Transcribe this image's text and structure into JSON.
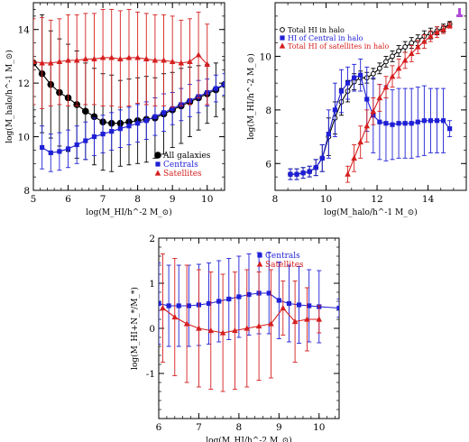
{
  "figure": {
    "panels": [
      "panel-top-left",
      "panel-top-right",
      "panel-bottom"
    ]
  },
  "chart_data": [
    {
      "id": "panel-top-left",
      "type": "line",
      "xlabel": "log(M_HI/h^-2 M_⊙)",
      "ylabel": "log(M_halo/h^-1 M_⊙)",
      "xlim": [
        5,
        10.5
      ],
      "ylim": [
        8,
        15
      ],
      "xticks": [
        5,
        6,
        7,
        8,
        9,
        10
      ],
      "yticks": [
        8,
        10,
        12,
        14
      ],
      "legend": {
        "placement": "bottom-right",
        "entries": [
          {
            "label": "All galaxies",
            "color": "#000000",
            "marker": "circle"
          },
          {
            "label": "Centrals",
            "color": "#1f1fd6",
            "marker": "square"
          },
          {
            "label": "Satellites",
            "color": "#d61f1f",
            "marker": "triangle"
          }
        ]
      },
      "series": [
        {
          "name": "All galaxies",
          "color": "#000000",
          "marker": "circle",
          "x": [
            5.0,
            5.25,
            5.5,
            5.75,
            6.0,
            6.25,
            6.5,
            6.75,
            7.0,
            7.25,
            7.5,
            7.75,
            8.0,
            8.25,
            8.5,
            8.75,
            9.0,
            9.25,
            9.5,
            9.75,
            10.0,
            10.25,
            10.5
          ],
          "y": [
            12.75,
            12.35,
            11.95,
            11.65,
            11.45,
            11.2,
            10.95,
            10.75,
            10.55,
            10.5,
            10.5,
            10.55,
            10.6,
            10.65,
            10.7,
            10.85,
            11.0,
            11.15,
            11.3,
            11.45,
            11.6,
            11.75,
            11.95
          ],
          "err": [
            2.0,
            2.2,
            2.0,
            2.0,
            2.0,
            2.0,
            1.8,
            1.8,
            1.8,
            1.8,
            1.6,
            1.6,
            1.6,
            1.6,
            1.5,
            1.5,
            1.4,
            1.4,
            1.3,
            1.2,
            1.1,
            1.0,
            0.9
          ]
        },
        {
          "name": "Centrals",
          "color": "#1f1fd6",
          "marker": "square",
          "x": [
            5.25,
            5.5,
            5.75,
            6.0,
            6.25,
            6.5,
            6.75,
            7.0,
            7.25,
            7.5,
            7.75,
            8.0,
            8.25,
            8.5,
            8.75,
            9.0,
            9.25,
            9.5,
            9.75,
            10.0,
            10.25,
            10.5
          ],
          "y": [
            9.6,
            9.4,
            9.45,
            9.55,
            9.7,
            9.85,
            10.0,
            10.1,
            10.2,
            10.3,
            10.4,
            10.5,
            10.6,
            10.75,
            10.9,
            11.05,
            11.2,
            11.35,
            11.5,
            11.65,
            11.8,
            11.95
          ],
          "err": [
            0.8,
            0.7,
            0.7,
            0.7,
            0.7,
            0.7,
            0.7,
            0.7,
            0.7,
            0.7,
            0.7,
            0.7,
            0.7,
            0.7,
            0.7,
            0.6,
            0.6,
            0.6,
            0.6,
            0.5,
            0.5,
            0.4
          ]
        },
        {
          "name": "Satellites",
          "color": "#d61f1f",
          "marker": "triangle",
          "x": [
            5.0,
            5.25,
            5.5,
            5.75,
            6.0,
            6.25,
            6.5,
            6.75,
            7.0,
            7.25,
            7.5,
            7.75,
            8.0,
            8.25,
            8.5,
            8.75,
            9.0,
            9.25,
            9.5,
            9.75,
            10.0
          ],
          "y": [
            12.8,
            12.75,
            12.75,
            12.8,
            12.85,
            12.85,
            12.9,
            12.9,
            12.95,
            12.95,
            12.9,
            12.95,
            12.95,
            12.9,
            12.85,
            12.85,
            12.8,
            12.75,
            12.8,
            13.05,
            12.7
          ],
          "err": [
            1.6,
            1.7,
            1.6,
            1.6,
            1.7,
            1.7,
            1.7,
            1.7,
            1.8,
            1.8,
            1.8,
            1.8,
            1.7,
            1.7,
            1.7,
            1.7,
            1.7,
            1.6,
            1.6,
            1.6,
            1.5
          ]
        }
      ]
    },
    {
      "id": "panel-top-right",
      "type": "line",
      "xlabel": "log(M_halo/h^-1 M_⊙)",
      "ylabel": "log(M_HI/h^-2 M_⊙)",
      "xlim": [
        8,
        15.5
      ],
      "ylim": [
        5,
        12
      ],
      "xticks": [
        8,
        10,
        12,
        14
      ],
      "yticks": [
        6,
        8,
        10
      ],
      "legend": {
        "placement": "top-left",
        "entries": [
          {
            "label": "Total HI in halo",
            "color": "#000000",
            "marker": "open-circle"
          },
          {
            "label": "HI of Central in halo",
            "color": "#1f1fd6",
            "marker": "square"
          },
          {
            "label": "Total HI of satellites in halo",
            "color": "#d61f1f",
            "marker": "triangle"
          }
        ]
      },
      "series": [
        {
          "name": "Total HI in halo",
          "color": "#000000",
          "marker": "open-circle",
          "x": [
            8.6,
            8.85,
            9.1,
            9.35,
            9.6,
            9.85,
            10.1,
            10.35,
            10.6,
            10.85,
            11.1,
            11.35,
            11.6,
            11.85,
            12.1,
            12.35,
            12.6,
            12.85,
            13.1,
            13.35,
            13.6,
            13.85,
            14.1,
            14.35,
            14.6,
            14.85
          ],
          "y": [
            5.6,
            5.6,
            5.65,
            5.7,
            5.85,
            6.2,
            7.0,
            7.7,
            8.3,
            8.7,
            9.05,
            9.2,
            9.2,
            9.35,
            9.55,
            9.8,
            10.0,
            10.2,
            10.35,
            10.5,
            10.6,
            10.75,
            10.85,
            10.95,
            11.05,
            11.2
          ],
          "err": [
            0.2,
            0.2,
            0.2,
            0.2,
            0.3,
            0.5,
            0.7,
            0.6,
            0.5,
            0.4,
            0.3,
            0.25,
            0.2,
            0.2,
            0.2,
            0.2,
            0.2,
            0.2,
            0.2,
            0.2,
            0.2,
            0.2,
            0.2,
            0.15,
            0.15,
            0.1
          ]
        },
        {
          "name": "HI of Central in halo",
          "color": "#1f1fd6",
          "marker": "square",
          "x": [
            8.6,
            8.85,
            9.1,
            9.35,
            9.6,
            9.85,
            10.1,
            10.35,
            10.6,
            10.85,
            11.1,
            11.35,
            11.6,
            11.85,
            12.1,
            12.35,
            12.6,
            12.85,
            13.1,
            13.35,
            13.6,
            13.85,
            14.1,
            14.35,
            14.6,
            14.85
          ],
          "y": [
            5.6,
            5.6,
            5.65,
            5.7,
            5.85,
            6.2,
            7.1,
            8.0,
            8.7,
            9.0,
            9.2,
            9.3,
            8.4,
            7.8,
            7.55,
            7.5,
            7.45,
            7.5,
            7.5,
            7.5,
            7.55,
            7.6,
            7.6,
            7.6,
            7.6,
            7.3
          ],
          "err": [
            0.2,
            0.2,
            0.2,
            0.2,
            0.3,
            0.5,
            0.9,
            1.0,
            0.8,
            0.6,
            0.5,
            0.6,
            1.2,
            1.4,
            1.4,
            1.4,
            1.3,
            1.3,
            1.3,
            1.3,
            1.3,
            1.3,
            1.2,
            1.2,
            1.2,
            0.3
          ]
        },
        {
          "name": "Total HI of satellites in halo",
          "color": "#d61f1f",
          "marker": "triangle",
          "x": [
            10.85,
            11.1,
            11.35,
            11.6,
            11.85,
            12.1,
            12.35,
            12.6,
            12.85,
            13.1,
            13.35,
            13.6,
            13.85,
            14.1,
            14.35,
            14.6,
            14.85
          ],
          "y": [
            5.6,
            6.2,
            6.8,
            7.4,
            7.95,
            8.45,
            8.85,
            9.25,
            9.55,
            9.85,
            10.1,
            10.35,
            10.55,
            10.75,
            10.9,
            11.0,
            11.15
          ],
          "err": [
            0.3,
            0.5,
            0.6,
            0.6,
            0.5,
            0.5,
            0.4,
            0.4,
            0.35,
            0.3,
            0.3,
            0.25,
            0.25,
            0.2,
            0.2,
            0.15,
            0.1
          ]
        }
      ]
    },
    {
      "id": "panel-bottom",
      "type": "line",
      "xlabel": "log(M_HI/h^-2 M_⊙)",
      "ylabel": "log(M_HI+N_*/M_*)",
      "xlim": [
        6,
        10.5
      ],
      "ylim": [
        -2,
        2
      ],
      "xticks": [
        6,
        7,
        8,
        9,
        10
      ],
      "yticks": [
        -1,
        0,
        1,
        2
      ],
      "legend": {
        "placement": "top-right",
        "entries": [
          {
            "label": "Centrals",
            "color": "#1f1fd6",
            "marker": "square"
          },
          {
            "label": "Satellites",
            "color": "#d61f1f",
            "marker": "triangle"
          }
        ]
      },
      "series": [
        {
          "name": "Centrals",
          "color": "#1f1fd6",
          "marker": "square",
          "x": [
            6.0,
            6.25,
            6.5,
            6.75,
            7.0,
            7.25,
            7.5,
            7.75,
            8.0,
            8.25,
            8.5,
            8.75,
            9.0,
            9.25,
            9.5,
            9.75,
            10.0,
            10.5
          ],
          "y": [
            0.55,
            0.5,
            0.5,
            0.5,
            0.52,
            0.55,
            0.6,
            0.65,
            0.7,
            0.75,
            0.78,
            0.78,
            0.62,
            0.55,
            0.52,
            0.5,
            0.48,
            0.45
          ],
          "err": [
            0.9,
            0.9,
            0.9,
            0.9,
            0.9,
            0.9,
            0.9,
            0.9,
            0.9,
            0.9,
            0.9,
            0.9,
            0.85,
            0.85,
            0.85,
            0.8,
            0.8,
            0.2
          ]
        },
        {
          "name": "Satellites",
          "color": "#d61f1f",
          "marker": "triangle",
          "x": [
            6.1,
            6.4,
            6.7,
            7.0,
            7.3,
            7.6,
            7.9,
            8.2,
            8.5,
            8.8,
            9.1,
            9.4,
            9.7,
            10.0
          ],
          "y": [
            0.45,
            0.25,
            0.1,
            0.0,
            -0.05,
            -0.1,
            -0.05,
            0.0,
            0.05,
            0.1,
            0.45,
            0.15,
            0.2,
            0.2
          ],
          "err": [
            1.2,
            1.3,
            1.3,
            1.3,
            1.3,
            1.3,
            1.3,
            1.3,
            1.2,
            1.2,
            0.6,
            0.9,
            0.7,
            0.3
          ]
        }
      ]
    }
  ]
}
